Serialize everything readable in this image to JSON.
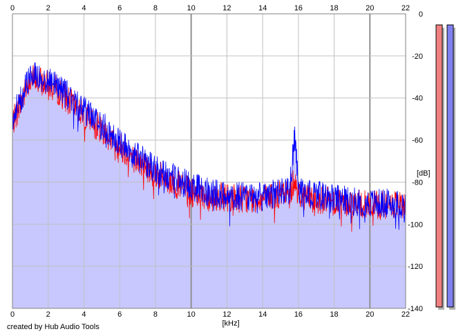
{
  "credit": "created by Hub Audio Tools",
  "chart_data": {
    "type": "line",
    "title": "",
    "xlabel": "[kHz]",
    "ylabel": "[dB]",
    "xlim": [
      0,
      22
    ],
    "ylim": [
      -140,
      0
    ],
    "x_ticks": [
      0,
      2,
      4,
      6,
      8,
      10,
      12,
      14,
      16,
      18,
      20,
      22
    ],
    "y_ticks": [
      0,
      -20,
      -40,
      -60,
      -80,
      -100,
      -120,
      -140
    ],
    "grid": true,
    "legend": "none",
    "colors": {
      "fill": "#c8c8ff",
      "grid": "#c0c0c0",
      "grid_major": "#909090",
      "axis": "#808080",
      "meter_left": "#f08080",
      "meter_right": "#8080f0"
    },
    "series": [
      {
        "color": "#ff0000",
        "x": [
          0,
          0.5,
          1,
          1.5,
          2,
          2.5,
          3,
          4,
          5,
          6,
          7,
          8,
          9,
          10,
          11,
          12,
          13,
          14,
          15,
          15.5,
          15.8,
          16,
          17,
          18,
          19,
          20,
          21,
          22
        ],
        "y": [
          -52,
          -42,
          -30,
          -32,
          -34,
          -36,
          -40,
          -48,
          -55,
          -63,
          -70,
          -76,
          -80,
          -85,
          -87,
          -87,
          -88,
          -88,
          -86,
          -85,
          -78,
          -86,
          -88,
          -89,
          -90,
          -91,
          -91,
          -92
        ]
      },
      {
        "color": "#0000ff",
        "x": [
          0,
          0.5,
          1,
          1.5,
          2,
          2.5,
          3,
          4,
          5,
          6,
          7,
          8,
          9,
          10,
          11,
          12,
          13,
          14,
          15,
          15.5,
          15.8,
          16,
          17,
          18,
          19,
          20,
          21,
          22
        ],
        "y": [
          -50,
          -40,
          -28,
          -30,
          -31,
          -33,
          -38,
          -46,
          -53,
          -61,
          -68,
          -74,
          -78,
          -82,
          -85,
          -86,
          -87,
          -87,
          -85,
          -84,
          -57,
          -85,
          -86,
          -88,
          -89,
          -90,
          -90,
          -91
        ]
      }
    ],
    "level_meters": [
      {
        "color": "#f08080",
        "level": 1.0
      },
      {
        "color": "#8080f0",
        "level": 1.0
      }
    ]
  }
}
